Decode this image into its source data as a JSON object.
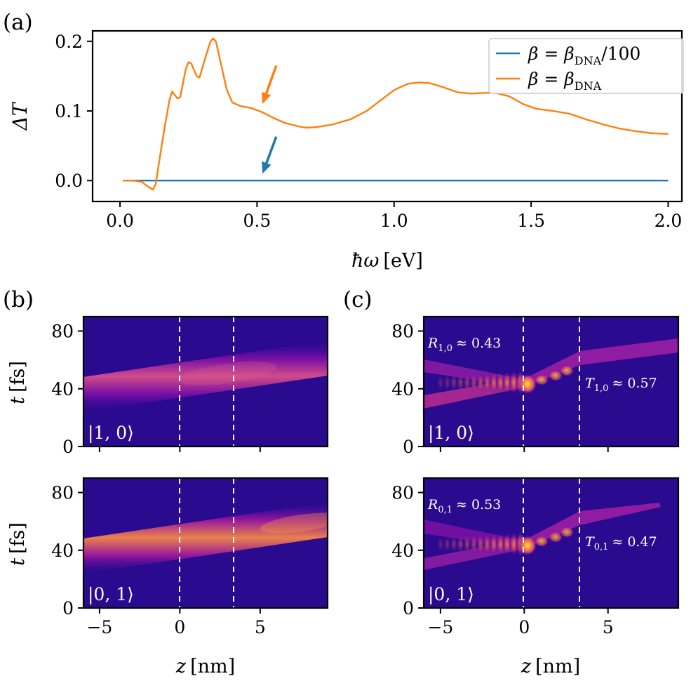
{
  "panel_labels": {
    "a": "(a)",
    "b": "(b)",
    "c": "(c)"
  },
  "chart_data": [
    {
      "panel": "(a)",
      "type": "line",
      "xlabel_symbol": "ħω",
      "xlabel_unit": "[eV]",
      "ylabel": "ΔT",
      "xlim": [
        -0.1,
        2.05
      ],
      "ylim": [
        -0.03,
        0.215
      ],
      "x_ticks": [
        0.0,
        0.5,
        1.0,
        1.5,
        2.0
      ],
      "x_tick_labels": [
        "0.0",
        "0.5",
        "1.0",
        "1.5",
        "2.0"
      ],
      "y_ticks": [
        0.0,
        0.1,
        0.2
      ],
      "y_tick_labels": [
        "0.0",
        "0.1",
        "0.2"
      ],
      "grid": false,
      "legend_position": "top-right",
      "series": [
        {
          "name": "β = β_DNA/100",
          "legend": {
            "lhs": "β = β",
            "sub": "DNA",
            "rhs": "/100"
          },
          "color": "#1f77b4",
          "points": [
            [
              0.01,
              0.0
            ],
            [
              2.0,
              0.0
            ]
          ]
        },
        {
          "name": "β = β_DNA",
          "legend": {
            "lhs": "β = β",
            "sub": "DNA",
            "rhs": ""
          },
          "color": "#ff7f0e",
          "points": [
            [
              0.01,
              0.0
            ],
            [
              0.05,
              0.0
            ],
            [
              0.08,
              -0.002
            ],
            [
              0.1,
              -0.008
            ],
            [
              0.12,
              -0.013
            ],
            [
              0.13,
              -0.005
            ],
            [
              0.14,
              0.02
            ],
            [
              0.16,
              0.07
            ],
            [
              0.18,
              0.115
            ],
            [
              0.19,
              0.128
            ],
            [
              0.21,
              0.118
            ],
            [
              0.22,
              0.12
            ],
            [
              0.24,
              0.16
            ],
            [
              0.25,
              0.17
            ],
            [
              0.26,
              0.168
            ],
            [
              0.28,
              0.15
            ],
            [
              0.29,
              0.148
            ],
            [
              0.31,
              0.175
            ],
            [
              0.33,
              0.2
            ],
            [
              0.34,
              0.204
            ],
            [
              0.35,
              0.2
            ],
            [
              0.37,
              0.165
            ],
            [
              0.39,
              0.13
            ],
            [
              0.41,
              0.112
            ],
            [
              0.44,
              0.107
            ],
            [
              0.48,
              0.104
            ],
            [
              0.52,
              0.098
            ],
            [
              0.56,
              0.09
            ],
            [
              0.6,
              0.083
            ],
            [
              0.65,
              0.078
            ],
            [
              0.68,
              0.076
            ],
            [
              0.72,
              0.077
            ],
            [
              0.78,
              0.081
            ],
            [
              0.84,
              0.088
            ],
            [
              0.9,
              0.1
            ],
            [
              0.95,
              0.115
            ],
            [
              1.0,
              0.13
            ],
            [
              1.05,
              0.139
            ],
            [
              1.09,
              0.141
            ],
            [
              1.13,
              0.14
            ],
            [
              1.18,
              0.134
            ],
            [
              1.23,
              0.127
            ],
            [
              1.28,
              0.125
            ],
            [
              1.33,
              0.126
            ],
            [
              1.37,
              0.126
            ],
            [
              1.42,
              0.121
            ],
            [
              1.47,
              0.11
            ],
            [
              1.52,
              0.103
            ],
            [
              1.58,
              0.1
            ],
            [
              1.64,
              0.096
            ],
            [
              1.7,
              0.088
            ],
            [
              1.76,
              0.081
            ],
            [
              1.82,
              0.075
            ],
            [
              1.88,
              0.071
            ],
            [
              1.94,
              0.068
            ],
            [
              2.0,
              0.067
            ]
          ]
        }
      ],
      "annotations": [
        {
          "type": "arrow",
          "color": "#ff7f0e",
          "from": [
            0.57,
            0.165
          ],
          "to": [
            0.52,
            0.11
          ]
        },
        {
          "type": "arrow",
          "color": "#1f77b4",
          "from": [
            0.57,
            0.063
          ],
          "to": [
            0.52,
            0.01
          ]
        }
      ]
    },
    {
      "panel": "(b)",
      "type": "heatmap",
      "colormap": "plasma",
      "xlabel_symbol": "z",
      "xlabel_unit": "[nm]",
      "ylabel_symbol": "t",
      "ylabel_unit": "[fs]",
      "xlim": [
        -6,
        9.2
      ],
      "ylim": [
        0,
        90
      ],
      "x_ticks": [
        -5,
        0,
        5
      ],
      "x_tick_labels": [
        "−5",
        "0",
        "5"
      ],
      "y_ticks": [
        0,
        40,
        80
      ],
      "y_tick_labels": [
        "0",
        "40",
        "80"
      ],
      "boundaries_z": [
        0,
        3.4
      ],
      "subplots": [
        {
          "state_label": "|1, 0⟩",
          "wavepacket": {
            "t_at_z_minus6": 33,
            "t_at_z_9": 58,
            "peak_z": 3.0
          }
        },
        {
          "state_label": "|0, 1⟩",
          "wavepacket": {
            "t_at_z_minus6": 33,
            "t_at_z_9": 58,
            "peak_z": 6.0
          }
        }
      ]
    },
    {
      "panel": "(c)",
      "type": "heatmap",
      "colormap": "plasma",
      "xlabel_symbol": "z",
      "xlabel_unit": "[nm]",
      "xlim": [
        -6,
        9.2
      ],
      "ylim": [
        0,
        90
      ],
      "x_ticks": [
        -5,
        0,
        5
      ],
      "x_tick_labels": [
        "−5",
        "0",
        "5"
      ],
      "y_ticks": [
        0,
        40,
        80
      ],
      "y_tick_labels": [
        "0",
        "40",
        "80"
      ],
      "boundaries_z": [
        0,
        3.4
      ],
      "subplots": [
        {
          "state_label": "|1, 0⟩",
          "R": {
            "sym": "R",
            "sub": "1,0",
            "val": "≈ 0.43"
          },
          "T": {
            "sym": "T",
            "sub": "1,0",
            "val": "≈ 0.57"
          }
        },
        {
          "state_label": "|0, 1⟩",
          "R": {
            "sym": "R",
            "sub": "0,1",
            "val": "≈ 0.53"
          },
          "T": {
            "sym": "T",
            "sub": "0,1",
            "val": "≈ 0.47"
          }
        }
      ]
    }
  ]
}
